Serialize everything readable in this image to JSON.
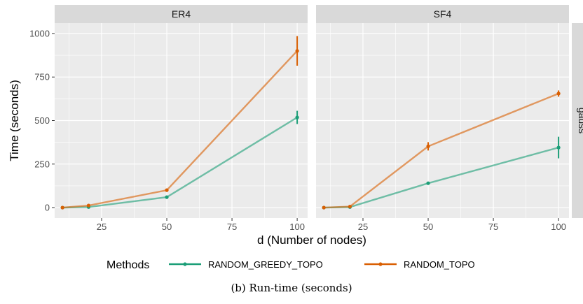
{
  "caption": "(b) Run-time (seconds)",
  "chart_data": {
    "type": "line",
    "ylabel": "Time (seconds)",
    "xlabel": "d (Number of nodes)",
    "xlim": [
      7,
      104
    ],
    "ylim": [
      -60,
      1060
    ],
    "xticks": [
      25,
      50,
      75,
      100
    ],
    "yticks": [
      0,
      250,
      500,
      750,
      1000
    ],
    "row_strip": "gauss",
    "legend": {
      "title": "Methods",
      "position": "bottom"
    },
    "grid": true,
    "panels": [
      {
        "title": "ER4",
        "series": [
          {
            "name": "RANDOM_GREEDY_TOPO",
            "color": "#1b9e77",
            "x": [
              10,
              20,
              50,
              100
            ],
            "y": [
              0,
              3,
              60,
              518
            ],
            "err": [
              0,
              0,
              0,
              38
            ]
          },
          {
            "name": "RANDOM_TOPO",
            "color": "#d95f02",
            "x": [
              10,
              20,
              50,
              100
            ],
            "y": [
              0,
              12,
              100,
              900
            ],
            "err": [
              0,
              0,
              0,
              85
            ]
          }
        ]
      },
      {
        "title": "SF4",
        "series": [
          {
            "name": "RANDOM_GREEDY_TOPO",
            "color": "#1b9e77",
            "x": [
              10,
              20,
              50,
              100
            ],
            "y": [
              0,
              3,
              140,
              345
            ],
            "err": [
              0,
              0,
              0,
              62
            ]
          },
          {
            "name": "RANDOM_TOPO",
            "color": "#d95f02",
            "x": [
              10,
              20,
              50,
              100
            ],
            "y": [
              0,
              6,
              352,
              655
            ],
            "err": [
              0,
              0,
              24,
              18
            ]
          }
        ]
      }
    ]
  }
}
